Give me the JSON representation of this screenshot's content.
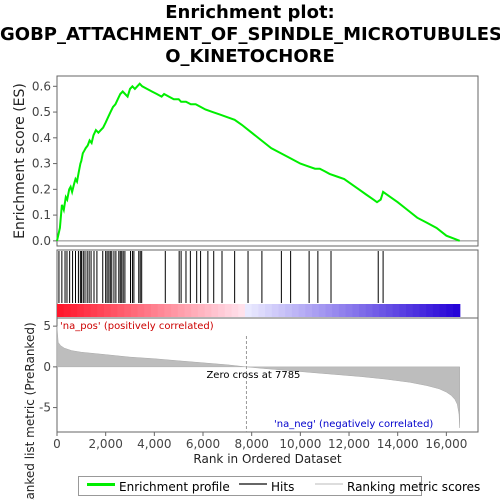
{
  "title_lines": [
    "Enrichment plot:",
    "GOBP_ATTACHMENT_OF_SPINDLE_MICROTUBULES_T",
    "O_KINETOCHORE"
  ],
  "chart_data": {
    "type": "line",
    "es_panel": {
      "ylabel": "Enrichment score (ES)",
      "ylim": [
        -0.02,
        0.64
      ],
      "yticks": [
        0.0,
        0.1,
        0.2,
        0.3,
        0.4,
        0.5,
        0.6
      ],
      "series": [
        {
          "name": "Enrichment profile",
          "color": "#00ee00",
          "x": [
            0,
            120,
            200,
            280,
            360,
            420,
            500,
            560,
            620,
            700,
            760,
            820,
            900,
            960,
            1000,
            1060,
            1120,
            1180,
            1260,
            1340,
            1420,
            1500,
            1600,
            1700,
            1800,
            1900,
            2000,
            2100,
            2200,
            2300,
            2400,
            2500,
            2600,
            2700,
            2800,
            2900,
            3000,
            3100,
            3200,
            3300,
            3400,
            3500,
            3700,
            3900,
            4100,
            4300,
            4400,
            4600,
            4800,
            5000,
            5100,
            5300,
            5500,
            5700,
            5900,
            6100,
            6400,
            6700,
            7000,
            7300,
            7600,
            8000,
            8400,
            8800,
            9200,
            9600,
            10000,
            10300,
            10600,
            10800,
            11000,
            11200,
            11500,
            11800,
            12100,
            12400,
            12700,
            13000,
            13150,
            13300,
            13400,
            13700,
            14000,
            14400,
            14800,
            15200,
            15600,
            16000,
            16550
          ],
          "y": [
            0.0,
            0.05,
            0.14,
            0.12,
            0.17,
            0.16,
            0.2,
            0.21,
            0.19,
            0.22,
            0.24,
            0.23,
            0.27,
            0.3,
            0.31,
            0.34,
            0.35,
            0.36,
            0.37,
            0.39,
            0.38,
            0.41,
            0.43,
            0.42,
            0.43,
            0.44,
            0.46,
            0.48,
            0.5,
            0.52,
            0.53,
            0.55,
            0.57,
            0.58,
            0.57,
            0.56,
            0.59,
            0.6,
            0.59,
            0.6,
            0.61,
            0.6,
            0.59,
            0.58,
            0.57,
            0.56,
            0.57,
            0.56,
            0.55,
            0.55,
            0.54,
            0.54,
            0.53,
            0.53,
            0.52,
            0.51,
            0.5,
            0.49,
            0.48,
            0.47,
            0.45,
            0.42,
            0.39,
            0.36,
            0.34,
            0.32,
            0.3,
            0.29,
            0.28,
            0.28,
            0.27,
            0.26,
            0.25,
            0.24,
            0.22,
            0.2,
            0.18,
            0.16,
            0.15,
            0.16,
            0.19,
            0.17,
            0.15,
            0.12,
            0.09,
            0.07,
            0.05,
            0.02,
            -0.0
          ]
        }
      ]
    },
    "hits_panel": {
      "hit_positions": [
        80,
        200,
        330,
        410,
        520,
        640,
        760,
        880,
        960,
        1010,
        1080,
        1150,
        1240,
        1320,
        1400,
        1520,
        1640,
        1880,
        2000,
        2060,
        2130,
        2190,
        2250,
        2340,
        2420,
        2540,
        2600,
        2660,
        2720,
        2790,
        3020,
        3100,
        3160,
        3360,
        3420,
        3480,
        4450,
        5020,
        5100,
        5300,
        5480,
        5740,
        5900,
        6200,
        6440,
        6780,
        7300,
        7850,
        8420,
        9220,
        9600,
        10360,
        10720,
        11260,
        13200,
        13400
      ]
    },
    "rank_panel": {
      "ylabel": "Ranked list metric (PreRanked)",
      "ylim": [
        -8,
        6
      ],
      "yticks": [
        -5,
        0,
        5
      ],
      "xlabel": "Rank in Ordered Dataset",
      "xlim": [
        0,
        17300
      ],
      "xticks": [
        0,
        2000,
        4000,
        6000,
        8000,
        10000,
        12000,
        14000,
        16000
      ],
      "zero_cross": 7785,
      "zero_cross_label": "Zero cross at 7785",
      "pos_label": "'na_pos' (positively correlated)",
      "neg_label": "'na_neg' (negatively correlated)",
      "metric_x": [
        0,
        50,
        150,
        300,
        600,
        1000,
        2000,
        3000,
        4000,
        5000,
        6000,
        7000,
        7785,
        8500,
        9500,
        10500,
        11500,
        12500,
        13500,
        14500,
        15200,
        15700,
        16000,
        16200,
        16350,
        16450,
        16520,
        16550
      ],
      "metric_y": [
        5.0,
        3.0,
        2.6,
        2.3,
        2.0,
        1.8,
        1.5,
        1.2,
        1.0,
        0.75,
        0.5,
        0.25,
        0.0,
        -0.2,
        -0.45,
        -0.7,
        -0.95,
        -1.2,
        -1.5,
        -1.9,
        -2.3,
        -2.7,
        -3.1,
        -3.5,
        -4.0,
        -4.6,
        -5.8,
        -7.5
      ]
    },
    "legend": [
      {
        "label": "Enrichment profile",
        "color": "#00ee00"
      },
      {
        "label": "Hits",
        "color": "#000000"
      },
      {
        "label": "Ranking metric scores",
        "color": "#cccccc"
      }
    ],
    "grid": false
  }
}
